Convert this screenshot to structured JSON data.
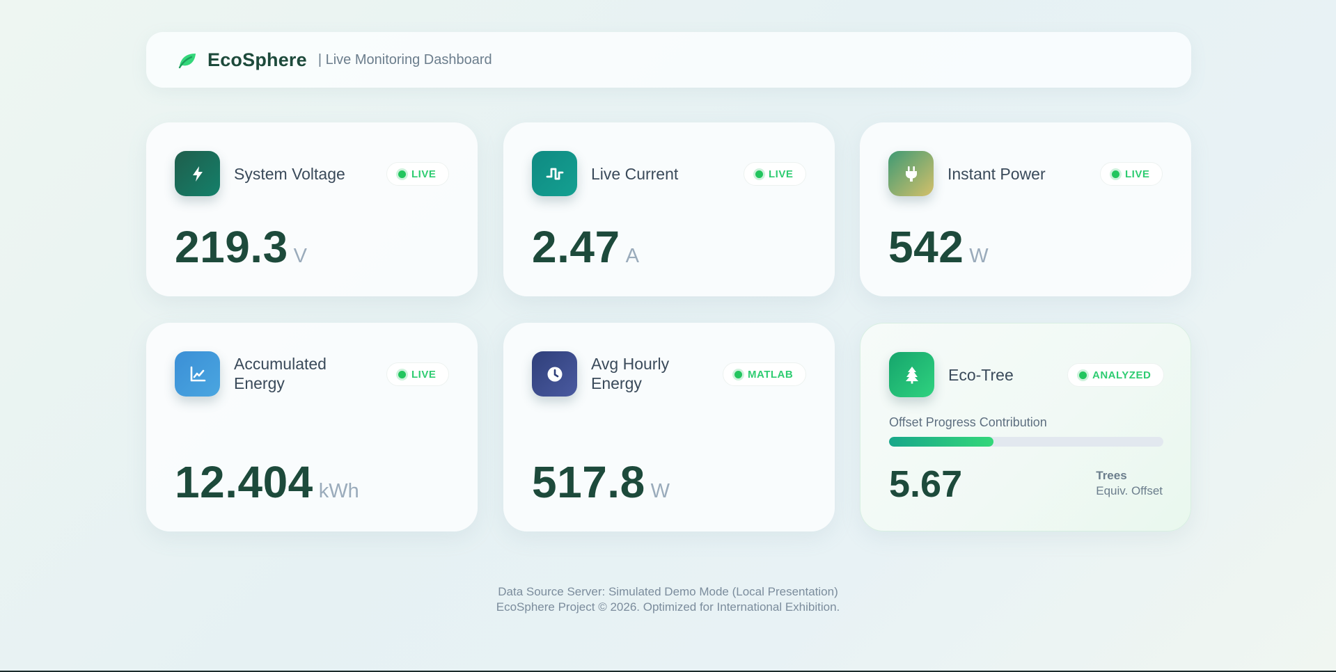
{
  "header": {
    "brand": "EcoSphere",
    "subtitle": "| Live Monitoring Dashboard",
    "logo_icon": "leaf-icon"
  },
  "cards": {
    "voltage": {
      "title": "System Voltage",
      "badge": "LIVE",
      "value": "219.3",
      "unit": "V",
      "icon": "bolt-icon",
      "color": "#1e6b55"
    },
    "current": {
      "title": "Live Current",
      "badge": "LIVE",
      "value": "2.47",
      "unit": "A",
      "icon": "square-wave-icon",
      "color": "#0f9488"
    },
    "power": {
      "title": "Instant Power",
      "badge": "LIVE",
      "value": "542",
      "unit": "W",
      "icon": "plug-icon",
      "color": "#6fae7f"
    },
    "energy": {
      "title_line1": "Accumulated",
      "title_line2": "Energy",
      "badge": "LIVE",
      "value": "12.404",
      "unit": "kWh",
      "icon": "line-chart-icon",
      "color": "#3b8fd6"
    },
    "avg": {
      "title_line1": "Avg Hourly",
      "title_line2": "Energy",
      "badge": "MATLAB",
      "value": "517.8",
      "unit": "W",
      "icon": "clock-icon",
      "color": "#2f3f7a"
    },
    "eco": {
      "title": "Eco-Tree",
      "badge": "ANALYZED",
      "progress_label": "Offset Progress Contribution",
      "progress_fraction": 0.38,
      "value": "5.67",
      "label_line1": "Trees",
      "label_line2": "Equiv. Offset",
      "icon": "tree-icon",
      "color": "#22c55e"
    }
  },
  "footer": {
    "line1": "Data Source Server: Simulated Demo Mode (Local Presentation)",
    "line2": "EcoSphere Project © 2026. Optimized for International Exhibition."
  }
}
